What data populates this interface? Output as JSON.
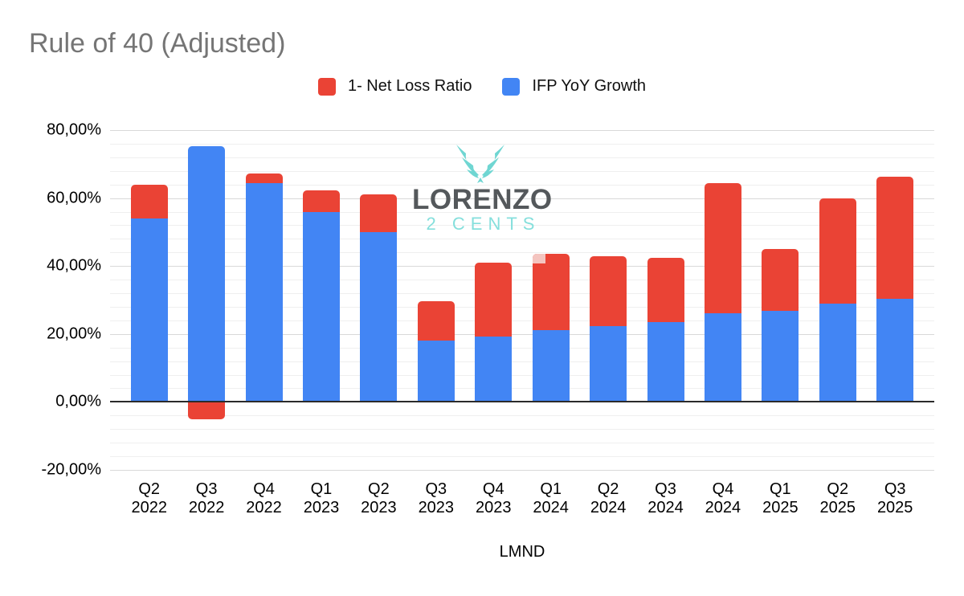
{
  "title": "Rule of 40 (Adjusted)",
  "legend": [
    {
      "label": "1- Net Loss Ratio",
      "color": "#EA4335"
    },
    {
      "label": "IFP YoY Growth",
      "color": "#4285F4"
    }
  ],
  "watermark": {
    "name": "LORENZO",
    "subtitle": "2 CENTS",
    "logo_color": "#6fd6d2",
    "name_color": "#54585b",
    "subtitle_color": "#85dfdc"
  },
  "chart_data": {
    "type": "bar",
    "stacked": true,
    "title": "Rule of 40 (Adjusted)",
    "xlabel": "LMND",
    "ylabel": "",
    "ylim": [
      -20,
      80
    ],
    "y_major_step": 20,
    "y_minor_step": 4,
    "grid": true,
    "legend_position": "top",
    "categories": [
      "Q2 2022",
      "Q3 2022",
      "Q4 2022",
      "Q1 2023",
      "Q2 2023",
      "Q3 2023",
      "Q4 2023",
      "Q1 2024",
      "Q2 2024",
      "Q3 2024",
      "Q4 2024",
      "Q1 2025",
      "Q2 2025",
      "Q3 2025"
    ],
    "series": [
      {
        "name": "IFP YoY Growth",
        "color": "#4285F4",
        "values": [
          54.0,
          75.2,
          64.5,
          56.0,
          50.0,
          18.0,
          19.3,
          21.2,
          22.2,
          23.6,
          26.1,
          26.9,
          28.9,
          30.3
        ]
      },
      {
        "name": "1- Net Loss Ratio",
        "color": "#EA4335",
        "values": [
          10.0,
          -5.0,
          2.7,
          6.3,
          11.0,
          11.7,
          21.7,
          22.3,
          20.8,
          18.9,
          38.2,
          18.0,
          31.1,
          35.9
        ]
      }
    ],
    "y_ticks": [
      {
        "value": 80,
        "label": "80,00%"
      },
      {
        "value": 60,
        "label": "60,00%"
      },
      {
        "value": 40,
        "label": "40,00%"
      },
      {
        "value": 20,
        "label": "20,00%"
      },
      {
        "value": 0,
        "label": "0,00%"
      },
      {
        "value": -20,
        "label": "-20,00%"
      }
    ],
    "colors": {
      "grid_major": "#d9d9d9",
      "grid_minor": "#efefef",
      "zero_line": "#2b2b2b"
    },
    "annotation": {
      "category_index": 7,
      "width": 16,
      "height": 12,
      "color": "#F4C5C0"
    }
  }
}
